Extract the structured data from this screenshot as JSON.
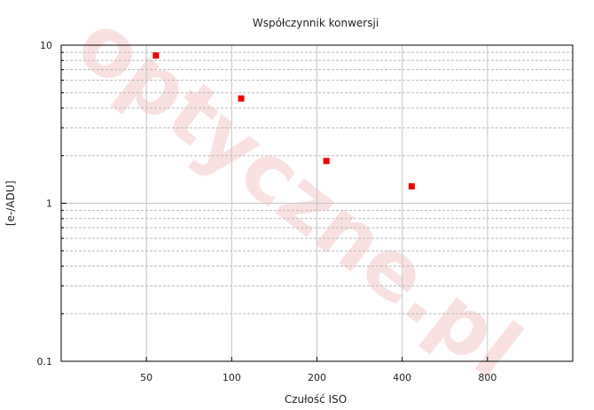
{
  "chart_data": {
    "type": "scatter",
    "title": "Współczynnik konwersji",
    "xlabel": "Czułość ISO",
    "ylabel": "[e-/ADU]",
    "x_scale": "log2",
    "y_scale": "log10",
    "x_ticks": [
      "50",
      "100",
      "200",
      "400",
      "800"
    ],
    "y_ticks": [
      "0.1",
      "1",
      "10"
    ],
    "xlim": [
      25,
      1600
    ],
    "ylim": [
      0.1,
      10
    ],
    "grid": true,
    "series": [
      {
        "color": "#ee0000",
        "points": [
          {
            "x": 54,
            "y": 8.6
          },
          {
            "x": 108,
            "y": 4.6
          },
          {
            "x": 216,
            "y": 1.85
          },
          {
            "x": 432,
            "y": 1.28
          }
        ]
      }
    ],
    "watermark": "optyczne.pl"
  }
}
